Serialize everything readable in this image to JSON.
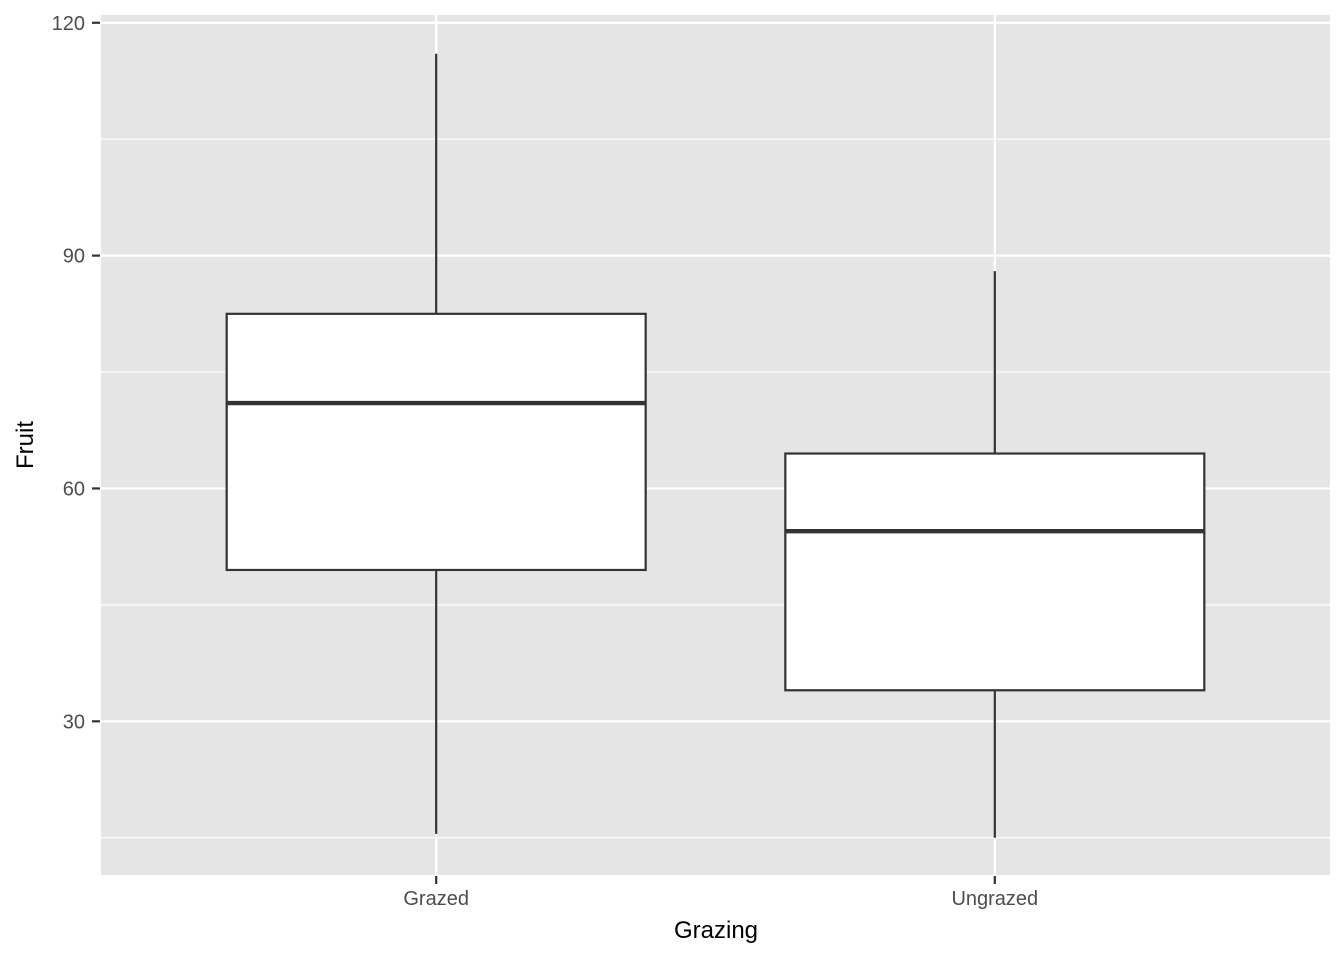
{
  "figure": {
    "outer_background": "#FFFFFF"
  },
  "chart_data": {
    "type": "boxplot",
    "title": "",
    "xlabel": "Grazing",
    "ylabel": "Fruit",
    "categories": [
      "Grazed",
      "Ungrazed"
    ],
    "series": [
      {
        "name": "Grazed",
        "min": 15.5,
        "q1": 49.5,
        "median": 71,
        "q3": 82.5,
        "max": 116
      },
      {
        "name": "Ungrazed",
        "min": 15,
        "q1": 34,
        "median": 54.5,
        "q3": 64.5,
        "max": 88
      }
    ],
    "yticks": [
      30,
      60,
      90,
      120
    ],
    "yticks_minor": [
      15,
      45,
      75,
      105
    ],
    "ylim": [
      10.2,
      121
    ],
    "x_domain": [
      0.4,
      2.6
    ],
    "box_width_fraction": 0.75,
    "grid": "major and minor horizontal white gridlines, vertical major at categories",
    "legend_position": "none",
    "colors": {
      "panel_background": "#E5E5E5",
      "gridline": "#FFFFFF",
      "box_fill": "#FFFFFF",
      "box_stroke": "#333333",
      "median_stroke": "#333333",
      "whisker_stroke": "#333333",
      "tick_mark": "#333333",
      "tick_label": "#4D4D4D",
      "axis_title": "#000000"
    }
  }
}
